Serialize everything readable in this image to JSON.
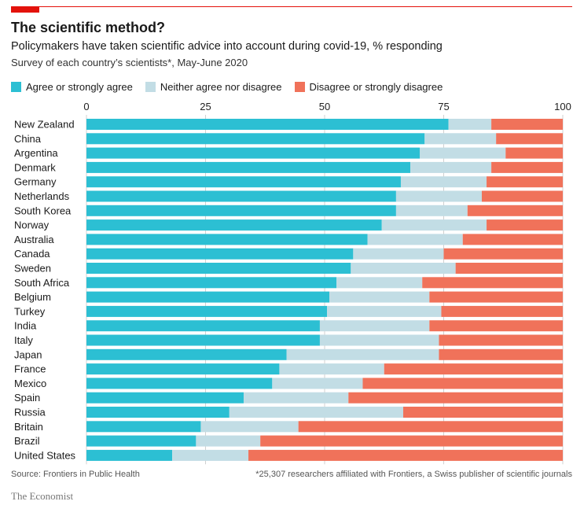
{
  "header": {
    "title": "The scientific method?",
    "subtitle": "Policymakers have taken scientific advice into account during covid-19, % responding",
    "survey_note": "Survey of each country’s scientists*, May-June 2020"
  },
  "footer": {
    "source": "Source: Frontiers in Public Health",
    "footnote": "*25,307 researchers affiliated with Frontiers, a Swiss publisher of scientific journals",
    "brand": "The Economist"
  },
  "colors": {
    "agree": "#2cbfd3",
    "neither": "#c2dde5",
    "disagree": "#f0725a",
    "brand_red": "#e3120b"
  },
  "chart_data": {
    "type": "bar",
    "orientation": "horizontal",
    "stacked": true,
    "xlim": [
      0,
      100
    ],
    "ticks": [
      0,
      25,
      50,
      75,
      100
    ],
    "tick_labels": [
      "0",
      "25",
      "50",
      "75",
      "100"
    ],
    "grid": true,
    "legend_position": "top-left",
    "categories": [
      "New Zealand",
      "China",
      "Argentina",
      "Denmark",
      "Germany",
      "Netherlands",
      "South Korea",
      "Norway",
      "Australia",
      "Canada",
      "Sweden",
      "South Africa",
      "Belgium",
      "Turkey",
      "India",
      "Italy",
      "Japan",
      "France",
      "Mexico",
      "Spain",
      "Russia",
      "Britain",
      "Brazil",
      "United States"
    ],
    "series": [
      {
        "name": "Agree or strongly agree",
        "color": "#2cbfd3",
        "values": [
          76,
          71,
          70,
          68,
          66,
          65,
          65,
          62,
          59,
          56,
          55.5,
          52.5,
          51,
          50.5,
          49,
          49,
          42,
          40.5,
          39,
          33,
          30,
          24,
          23,
          18
        ]
      },
      {
        "name": "Neither agree nor disagree",
        "color": "#c2dde5",
        "values": [
          9,
          15,
          18,
          17,
          18,
          18,
          15,
          22,
          20,
          19,
          22,
          18,
          21,
          24,
          23,
          25,
          32,
          22,
          19,
          22,
          36.5,
          20.5,
          13.5,
          16
        ]
      },
      {
        "name": "Disagree or strongly disagree",
        "color": "#f0725a",
        "values": [
          15,
          14,
          12,
          15,
          16,
          17,
          20,
          16,
          21,
          25,
          22.5,
          29.5,
          28,
          25.5,
          28,
          26,
          26,
          37.5,
          42,
          45,
          33.5,
          55.5,
          63.5,
          66
        ]
      }
    ]
  }
}
